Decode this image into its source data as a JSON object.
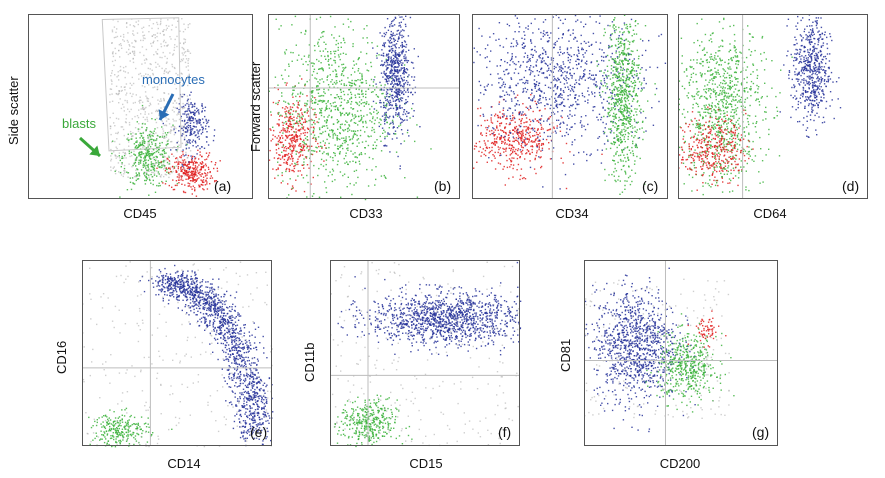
{
  "chart_data": [
    {
      "type": "scatter",
      "panel_label": "(a)",
      "xlabel": "CD45",
      "ylabel": "Side scatter",
      "annotations": [
        {
          "text": "monocytes",
          "color": "#2a6db5"
        },
        {
          "text": "blasts",
          "color": "#3aa83a"
        }
      ],
      "populations": [
        {
          "color": "#a8a8a8",
          "x": [
            0.36,
            0.72
          ],
          "y": [
            0.12,
            0.98
          ],
          "n": 700
        },
        {
          "color": "#3cb33c",
          "x": [
            0.42,
            0.64
          ],
          "y": [
            0.06,
            0.4
          ],
          "n": 350
        },
        {
          "color": "#e02020",
          "x": [
            0.62,
            0.82
          ],
          "y": [
            0.05,
            0.25
          ],
          "n": 300
        },
        {
          "color": "#27329a",
          "x": [
            0.66,
            0.8
          ],
          "y": [
            0.25,
            0.55
          ],
          "n": 220
        }
      ]
    },
    {
      "type": "scatter",
      "panel_label": "(b)",
      "xlabel": "CD33",
      "ylabel": "Forward scatter",
      "populations": [
        {
          "color": "#e02020",
          "x": [
            0.0,
            0.24
          ],
          "y": [
            0.1,
            0.55
          ],
          "n": 380
        },
        {
          "color": "#3cb33c",
          "x": [
            0.05,
            0.65
          ],
          "y": [
            0.05,
            0.95
          ],
          "n": 900
        },
        {
          "color": "#27329a",
          "x": [
            0.58,
            0.74
          ],
          "y": [
            0.35,
            1.0
          ],
          "n": 600
        }
      ]
    },
    {
      "type": "scatter",
      "panel_label": "(c)",
      "xlabel": "CD34",
      "ylabel": "",
      "populations": [
        {
          "color": "#e02020",
          "x": [
            0.0,
            0.42
          ],
          "y": [
            0.15,
            0.5
          ],
          "n": 450
        },
        {
          "color": "#27329a",
          "x": [
            0.0,
            0.86
          ],
          "y": [
            0.3,
            1.0
          ],
          "n": 900
        },
        {
          "color": "#3cb33c",
          "x": [
            0.68,
            0.86
          ],
          "y": [
            0.1,
            1.0
          ],
          "n": 700
        }
      ]
    },
    {
      "type": "scatter",
      "panel_label": "(d)",
      "xlabel": "CD64",
      "ylabel": "",
      "populations": [
        {
          "color": "#3cb33c",
          "x": [
            0.0,
            0.45
          ],
          "y": [
            0.05,
            0.95
          ],
          "n": 900
        },
        {
          "color": "#e02020",
          "x": [
            0.0,
            0.35
          ],
          "y": [
            0.1,
            0.45
          ],
          "n": 350
        },
        {
          "color": "#27329a",
          "x": [
            0.6,
            0.8
          ],
          "y": [
            0.4,
            1.0
          ],
          "n": 550
        }
      ]
    },
    {
      "type": "scatter",
      "panel_label": "(e)",
      "xlabel": "CD14",
      "ylabel": "CD16",
      "populations": [
        {
          "color": "#27329a",
          "x": [
            0.35,
            0.96
          ],
          "y": [
            0.03,
            0.95
          ],
          "n": 1400
        },
        {
          "color": "#3cb33c",
          "x": [
            0.05,
            0.35
          ],
          "y": [
            0.0,
            0.18
          ],
          "n": 250
        },
        {
          "color": "#a8a8a8",
          "x": [
            0.0,
            1.0
          ],
          "y": [
            0.0,
            1.0
          ],
          "n": 250
        }
      ]
    },
    {
      "type": "scatter",
      "panel_label": "(f)",
      "xlabel": "CD15",
      "ylabel": "CD11b",
      "populations": [
        {
          "color": "#27329a",
          "x": [
            0.2,
            1.0
          ],
          "y": [
            0.55,
            0.83
          ],
          "n": 1200
        },
        {
          "color": "#3cb33c",
          "x": [
            0.05,
            0.35
          ],
          "y": [
            0.0,
            0.25
          ],
          "n": 350
        },
        {
          "color": "#a8a8a8",
          "x": [
            0.0,
            1.0
          ],
          "y": [
            0.0,
            1.0
          ],
          "n": 250
        }
      ]
    },
    {
      "type": "scatter",
      "panel_label": "(g)",
      "xlabel": "CD200",
      "ylabel": "CD81",
      "populations": [
        {
          "color": "#27329a",
          "x": [
            0.05,
            0.48
          ],
          "y": [
            0.25,
            0.85
          ],
          "n": 1000
        },
        {
          "color": "#3cb33c",
          "x": [
            0.38,
            0.68
          ],
          "y": [
            0.25,
            0.6
          ],
          "n": 450
        },
        {
          "color": "#e02020",
          "x": [
            0.55,
            0.7
          ],
          "y": [
            0.55,
            0.7
          ],
          "n": 60
        },
        {
          "color": "#a8a8a8",
          "x": [
            0.0,
            0.75
          ],
          "y": [
            0.15,
            0.9
          ],
          "n": 200
        }
      ]
    }
  ]
}
